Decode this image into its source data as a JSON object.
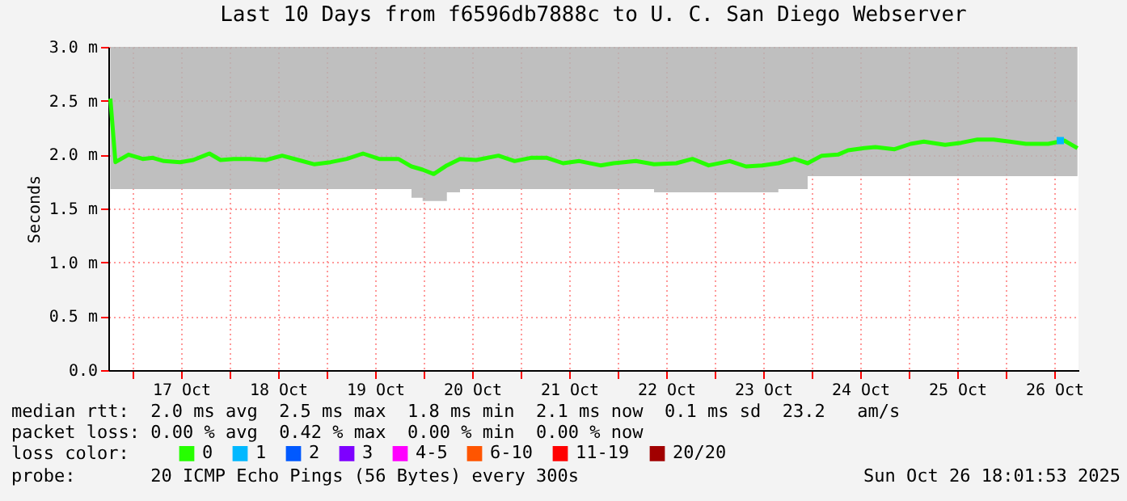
{
  "chart_data": {
    "type": "line",
    "title": "Last 10 Days from f6596db7888c to U. C. San Diego Webserver",
    "ylabel": "Seconds",
    "xlim": [
      "2025-10-16T18:00",
      "2025-10-26T18:00"
    ],
    "xticks": [
      {
        "value": "2025-10-17T00:00",
        "label": null
      },
      {
        "value": "2025-10-17T12:00",
        "label": "17 Oct"
      },
      {
        "value": "2025-10-18T00:00",
        "label": null
      },
      {
        "value": "2025-10-18T12:00",
        "label": "18 Oct"
      },
      {
        "value": "2025-10-19T00:00",
        "label": null
      },
      {
        "value": "2025-10-19T12:00",
        "label": "19 Oct"
      },
      {
        "value": "2025-10-20T00:00",
        "label": null
      },
      {
        "value": "2025-10-20T12:00",
        "label": "20 Oct"
      },
      {
        "value": "2025-10-21T00:00",
        "label": null
      },
      {
        "value": "2025-10-21T12:00",
        "label": "21 Oct"
      },
      {
        "value": "2025-10-22T00:00",
        "label": null
      },
      {
        "value": "2025-10-22T12:00",
        "label": "22 Oct"
      },
      {
        "value": "2025-10-23T00:00",
        "label": null
      },
      {
        "value": "2025-10-23T12:00",
        "label": "23 Oct"
      },
      {
        "value": "2025-10-24T00:00",
        "label": null
      },
      {
        "value": "2025-10-24T12:00",
        "label": "24 Oct"
      },
      {
        "value": "2025-10-25T00:00",
        "label": null
      },
      {
        "value": "2025-10-25T12:00",
        "label": "25 Oct"
      },
      {
        "value": "2025-10-26T00:00",
        "label": null
      },
      {
        "value": "2025-10-26T12:00",
        "label": "26 Oct"
      }
    ],
    "ylim": [
      0,
      3.0
    ],
    "yticks": [
      {
        "value": 0,
        "label": "0.0"
      },
      {
        "value": 0.5,
        "label": "0.5 m"
      },
      {
        "value": 1.0,
        "label": "1.0 m"
      },
      {
        "value": 1.5,
        "label": "1.5 m"
      },
      {
        "value": 2.0,
        "label": "2.0 m"
      },
      {
        "value": 2.5,
        "label": "2.5 m"
      },
      {
        "value": 3.0,
        "label": "3.0 m"
      }
    ],
    "grid": true,
    "legend": "bottom",
    "legend_title": "loss color:",
    "marker": "none",
    "line_style": "solid",
    "series": [
      {
        "name": "0",
        "color": "#26ff00",
        "x": [
          "2025-10-16T18:30",
          "2025-10-16T19:45",
          "2025-10-16T23:00",
          "2025-10-17T02:30",
          "2025-10-17T05:00",
          "2025-10-17T07:45",
          "2025-10-17T11:45",
          "2025-10-17T15:00",
          "2025-10-17T19:00",
          "2025-10-17T21:45",
          "2025-10-18T01:00",
          "2025-10-18T05:00",
          "2025-10-18T09:00",
          "2025-10-18T13:00",
          "2025-10-18T17:00",
          "2025-10-18T21:00",
          "2025-10-19T01:00",
          "2025-10-19T05:00",
          "2025-10-19T09:00",
          "2025-10-19T13:00",
          "2025-10-19T17:45",
          "2025-10-19T21:00",
          "2025-10-19T23:45",
          "2025-10-20T02:30",
          "2025-10-20T05:45",
          "2025-10-20T09:00",
          "2025-10-20T13:00",
          "2025-10-20T18:30",
          "2025-10-20T22:30",
          "2025-10-21T02:30",
          "2025-10-21T06:30",
          "2025-10-21T10:30",
          "2025-10-21T14:30",
          "2025-10-21T19:45",
          "2025-10-21T23:00",
          "2025-10-22T04:30",
          "2025-10-22T09:00",
          "2025-10-22T14:30",
          "2025-10-22T18:30",
          "2025-10-22T22:30",
          "2025-10-23T03:45",
          "2025-10-23T07:45",
          "2025-10-23T11:45",
          "2025-10-23T15:45",
          "2025-10-23T19:45",
          "2025-10-23T23:00",
          "2025-10-24T02:30",
          "2025-10-24T06:30",
          "2025-10-24T09:00",
          "2025-10-24T13:00",
          "2025-10-24T15:45",
          "2025-10-24T20:30",
          "2025-10-25T00:30",
          "2025-10-25T03:45",
          "2025-10-25T09:00",
          "2025-10-25T13:00",
          "2025-10-25T17:00",
          "2025-10-25T21:00",
          "2025-10-26T01:00",
          "2025-10-26T05:00",
          "2025-10-26T10:30",
          "2025-10-26T14:30",
          "2025-10-26T17:45"
        ],
        "values": [
          2.52,
          1.93,
          2.0,
          1.96,
          1.97,
          1.94,
          1.93,
          1.95,
          2.01,
          1.95,
          1.96,
          1.96,
          1.95,
          1.99,
          1.95,
          1.91,
          1.93,
          1.96,
          2.01,
          1.96,
          1.96,
          1.89,
          1.86,
          1.82,
          1.9,
          1.96,
          1.95,
          1.99,
          1.94,
          1.97,
          1.97,
          1.92,
          1.94,
          1.9,
          1.92,
          1.94,
          1.91,
          1.92,
          1.96,
          1.9,
          1.94,
          1.89,
          1.9,
          1.92,
          1.96,
          1.92,
          1.99,
          2.0,
          2.04,
          2.06,
          2.07,
          2.05,
          2.1,
          2.12,
          2.09,
          2.11,
          2.14,
          2.14,
          2.12,
          2.1,
          2.1,
          2.13,
          2.06
        ],
        "lower": [
          1.68,
          1.68,
          1.68,
          1.68,
          1.68,
          1.68,
          1.68,
          1.68,
          1.68,
          1.68,
          1.68,
          1.68,
          1.68,
          1.68,
          1.68,
          1.68,
          1.68,
          1.68,
          1.68,
          1.68,
          1.68,
          1.6,
          1.57,
          1.57,
          1.65,
          1.68,
          1.68,
          1.68,
          1.68,
          1.68,
          1.68,
          1.68,
          1.68,
          1.68,
          1.68,
          1.68,
          1.65,
          1.65,
          1.65,
          1.65,
          1.65,
          1.65,
          1.65,
          1.68,
          1.68,
          1.8,
          1.8,
          1.8,
          1.8,
          1.8,
          1.8,
          1.8,
          1.8,
          1.8,
          1.8,
          1.8,
          1.8,
          1.8,
          1.8,
          1.8,
          1.8,
          1.8,
          1.8
        ],
        "upper": [
          3.0,
          3.0,
          3.0,
          3.0,
          3.0,
          3.0,
          3.0,
          3.0,
          3.0,
          3.0,
          3.0,
          3.0,
          3.0,
          3.0,
          3.0,
          3.0,
          3.0,
          3.0,
          3.0,
          3.0,
          3.0,
          3.0,
          3.0,
          3.0,
          3.0,
          3.0,
          3.0,
          3.0,
          3.0,
          3.0,
          3.0,
          3.0,
          3.0,
          3.0,
          3.0,
          3.0,
          3.0,
          3.0,
          3.0,
          3.0,
          3.0,
          3.0,
          3.0,
          3.0,
          3.0,
          3.0,
          3.0,
          3.0,
          3.0,
          3.0,
          3.0,
          3.0,
          3.0,
          3.0,
          3.0,
          3.0,
          3.0,
          3.0,
          3.0,
          3.0,
          3.0,
          3.0,
          3.0
        ]
      },
      {
        "name": "1",
        "color": "#00b8ff",
        "type": "scatter",
        "marker": "square",
        "x": [
          "2025-10-26T13:30"
        ],
        "values": [
          2.13
        ]
      },
      {
        "name": "2",
        "color": "#0059ff"
      },
      {
        "name": "3",
        "color": "#7e00ff"
      },
      {
        "name": "4-5",
        "color": "#ff00ff"
      },
      {
        "name": "6-10",
        "color": "#ff5500"
      },
      {
        "name": "11-19",
        "color": "#ff0000"
      },
      {
        "name": "20/20",
        "color": "#a10000"
      }
    ],
    "annotations": [
      "median rtt:  2.0 ms avg  2.5 ms max  1.8 ms min  2.1 ms now  0.1 ms sd  23.2   am/s",
      "packet loss: 0.00 % avg  0.42 % max  0.00 % min  0.00 % now",
      "probe:       20 ICMP Echo Pings (56 Bytes) every 300s",
      "Sun Oct 26 18:01:53 2025"
    ]
  }
}
